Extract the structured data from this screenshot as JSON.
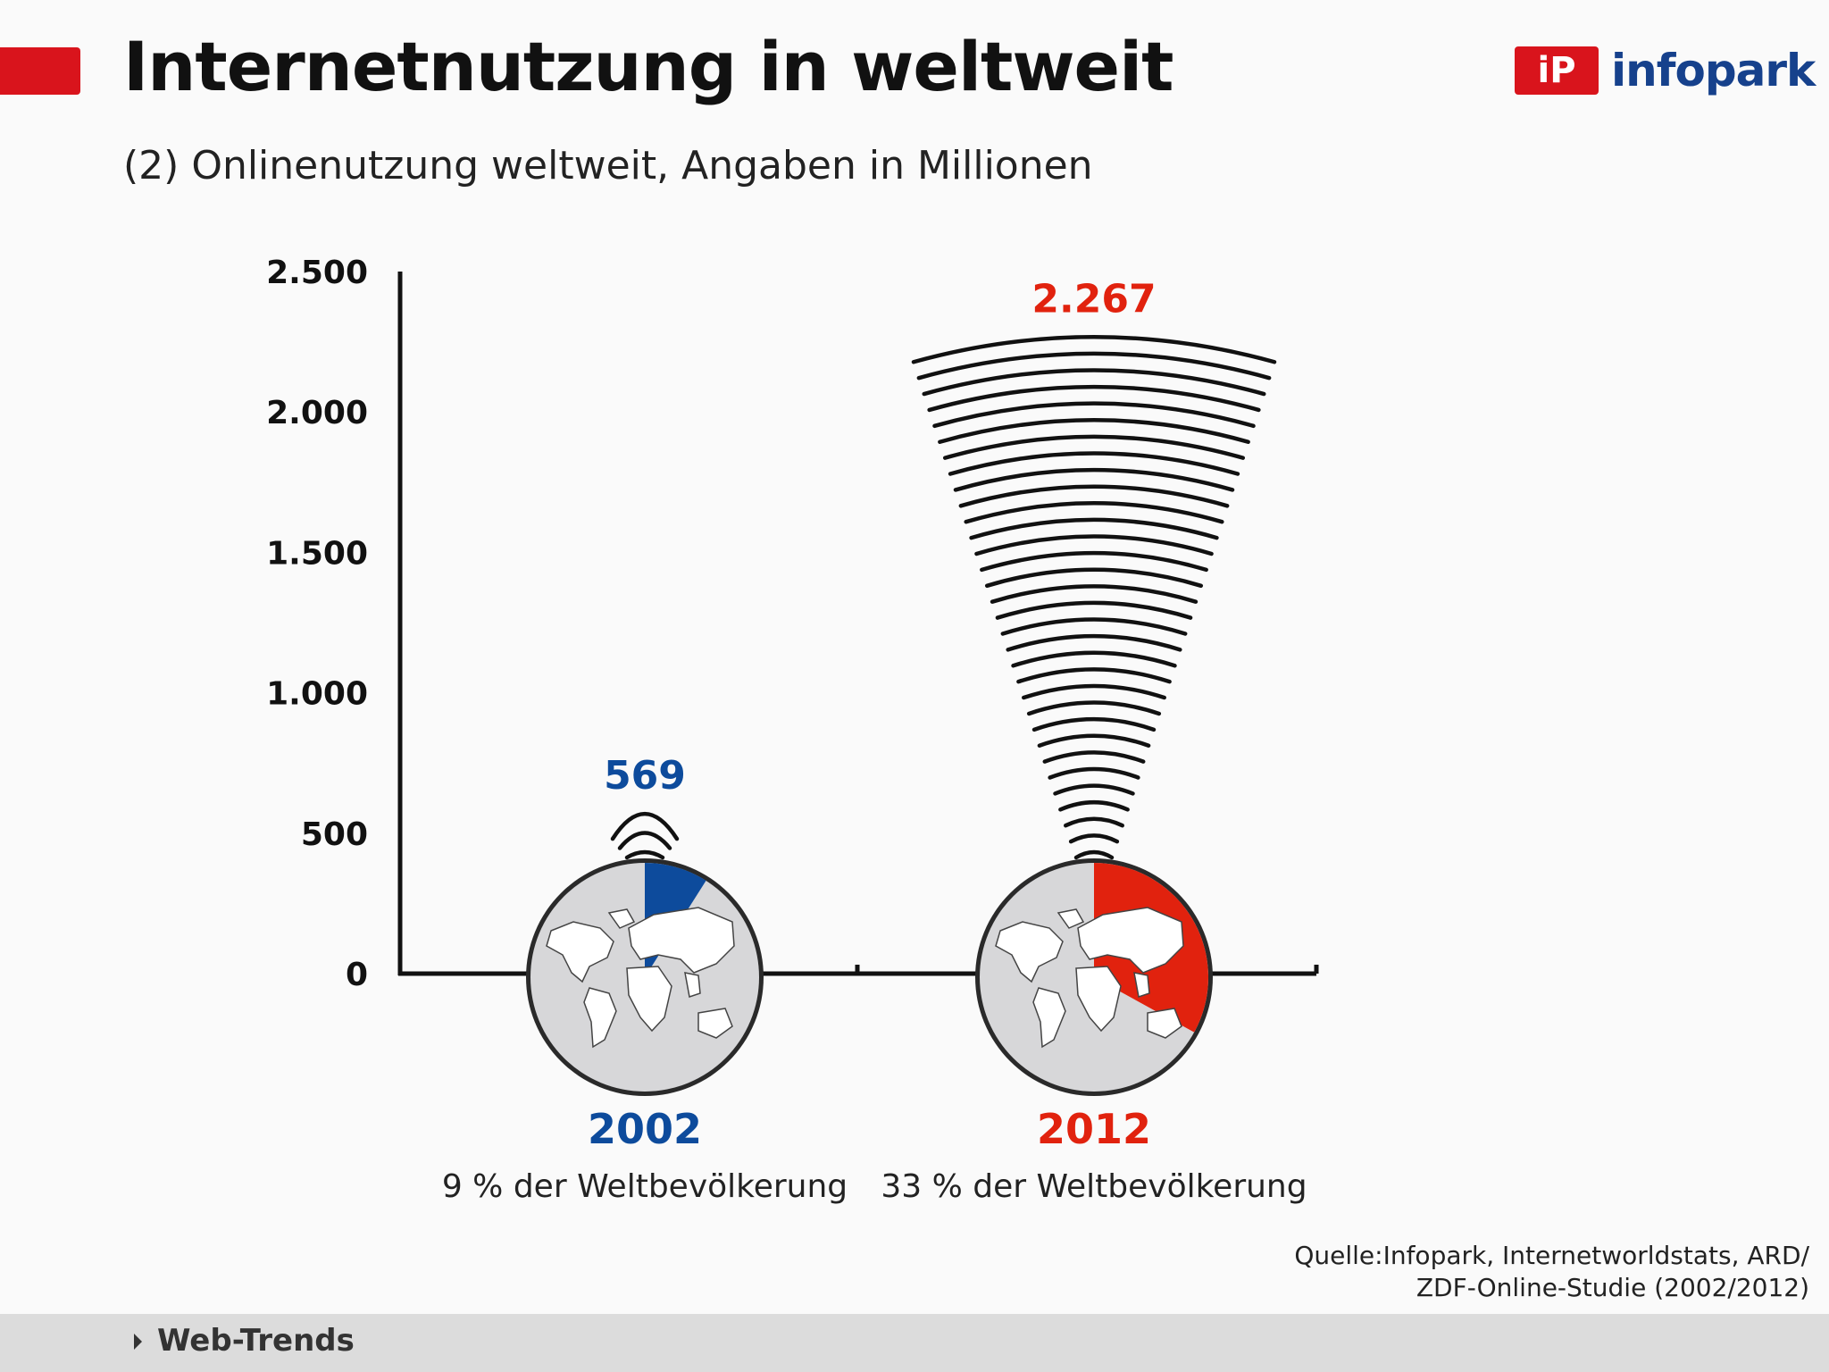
{
  "header": {
    "title": "Internetnutzung in weltweit",
    "subtitle": "(2) Onlinenutzung weltweit, Angaben in Millionen"
  },
  "logo": {
    "mark": "iP",
    "text": "infopark"
  },
  "chart_data": {
    "type": "bar",
    "title": "",
    "ylabel": "",
    "ylim": [
      0,
      2500
    ],
    "yticks": [
      0,
      500,
      1000,
      1500,
      2000,
      2500
    ],
    "ytick_labels": [
      "0",
      "500",
      "1.000",
      "1.500",
      "2.000",
      "2.500"
    ],
    "categories": [
      "2002",
      "2012"
    ],
    "values": [
      569,
      2267
    ],
    "value_labels": [
      "569",
      "2.267"
    ],
    "share_labels": [
      "9 % der Weltbevölkerung",
      "33 % der Weltbevölkerung"
    ],
    "shares_percent": [
      9,
      33
    ],
    "colors": [
      "#0d4b9c",
      "#e1220e"
    ]
  },
  "source": {
    "line1": "Quelle:Infopark, Internetworldstats, ARD/",
    "line2": "ZDF-Online-Studie (2002/2012)"
  },
  "footer": {
    "label": "Web-Trends"
  },
  "icons": {
    "globe": "world-map-icon",
    "arrow": "triangle-right-icon"
  }
}
